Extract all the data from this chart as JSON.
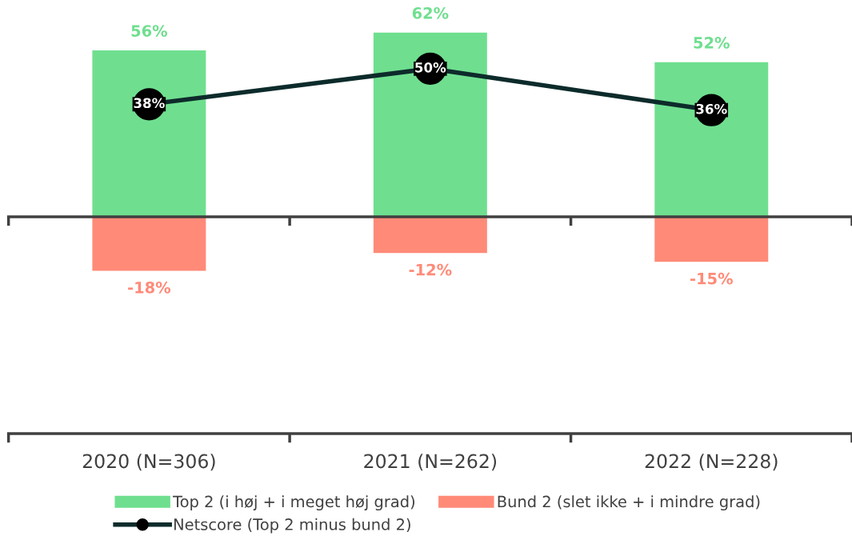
{
  "chart_data": {
    "type": "bar",
    "stacked": true,
    "data_labels": true,
    "categories": [
      "2020 (N=306)",
      "2021 (N=262)",
      "2022 (N=228)"
    ],
    "series": [
      {
        "name": "Top 2 (i høj + i meget høj grad)",
        "color": "#6fdf8f",
        "values": [
          56,
          62,
          52
        ],
        "value_labels": [
          "56%",
          "62%",
          "52%"
        ]
      },
      {
        "name": "Bund 2 (slet ikke + i mindre grad)",
        "color": "#ff8a78",
        "values": [
          -18,
          -12,
          -15
        ],
        "value_labels": [
          "-18%",
          "-12%",
          "-15%"
        ]
      },
      {
        "name": "Netscore (Top 2 minus bund 2)",
        "type": "line",
        "color": "#0d2b2b",
        "marker": "circle",
        "values": [
          38,
          50,
          36
        ],
        "value_labels": [
          "38%",
          "50%",
          "36%"
        ]
      }
    ],
    "legend": "bottom",
    "grid": false
  }
}
